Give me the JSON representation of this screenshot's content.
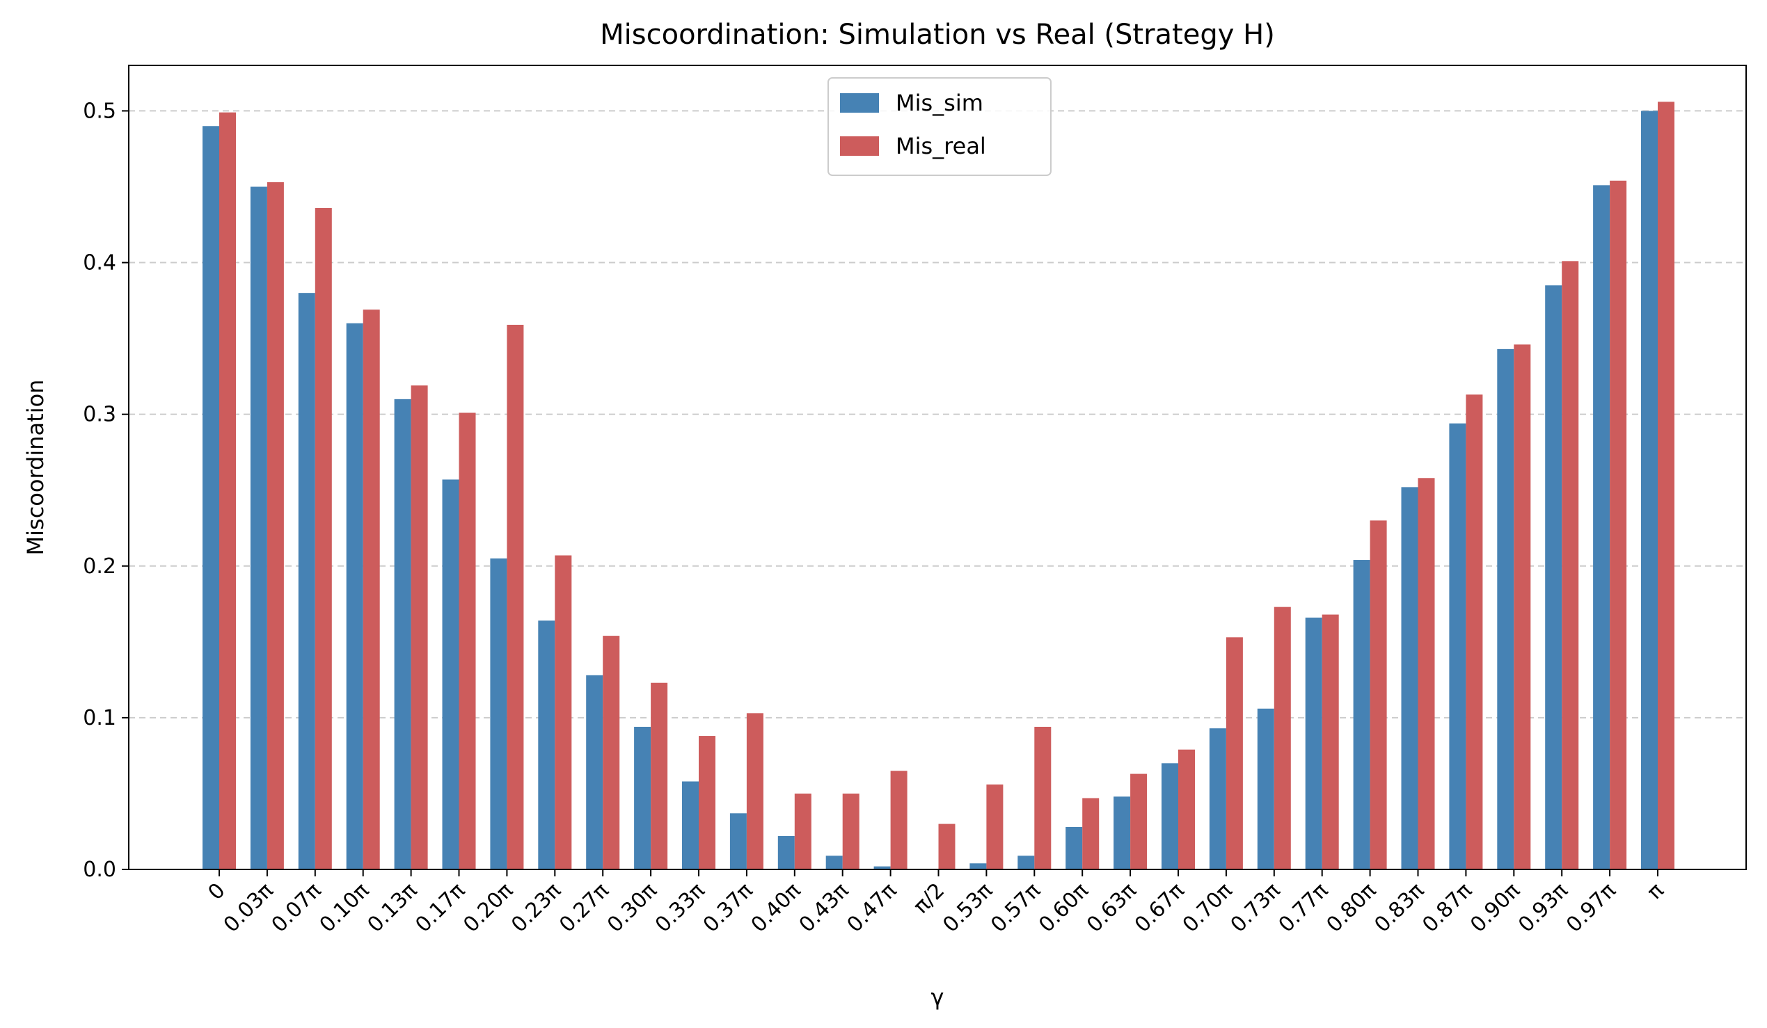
{
  "chart_data": {
    "type": "bar",
    "title": "Miscoordination: Simulation vs Real (Strategy H)",
    "xlabel": "γ",
    "ylabel": "Miscoordination",
    "ylim": [
      0,
      0.53
    ],
    "yticks": [
      0.0,
      0.1,
      0.2,
      0.3,
      0.4,
      0.5
    ],
    "ytick_labels": [
      "0.0",
      "0.1",
      "0.2",
      "0.3",
      "0.4",
      "0.5"
    ],
    "grid": "horizontal dashed",
    "legend_position": "top-center",
    "categories": [
      "0",
      "0.03π",
      "0.07π",
      "0.10π",
      "0.13π",
      "0.17π",
      "0.20π",
      "0.23π",
      "0.27π",
      "0.30π",
      "0.33π",
      "0.37π",
      "0.40π",
      "0.43π",
      "0.47π",
      "π/2",
      "0.53π",
      "0.57π",
      "0.60π",
      "0.63π",
      "0.67π",
      "0.70π",
      "0.73π",
      "0.77π",
      "0.80π",
      "0.83π",
      "0.87π",
      "0.90π",
      "0.93π",
      "0.97π",
      "π"
    ],
    "series": [
      {
        "name": "Mis_sim",
        "color": "#4682b4",
        "values": [
          0.49,
          0.45,
          0.38,
          0.36,
          0.31,
          0.257,
          0.205,
          0.164,
          0.128,
          0.094,
          0.058,
          0.037,
          0.022,
          0.009,
          0.002,
          0.0,
          0.004,
          0.009,
          0.028,
          0.048,
          0.07,
          0.093,
          0.106,
          0.166,
          0.204,
          0.252,
          0.294,
          0.343,
          0.385,
          0.451,
          0.5
        ]
      },
      {
        "name": "Mis_real",
        "color": "#cd5c5c",
        "values": [
          0.499,
          0.453,
          0.436,
          0.369,
          0.319,
          0.301,
          0.359,
          0.207,
          0.154,
          0.123,
          0.088,
          0.103,
          0.05,
          0.05,
          0.065,
          0.03,
          0.056,
          0.094,
          0.047,
          0.063,
          0.079,
          0.153,
          0.173,
          0.168,
          0.23,
          0.258,
          0.313,
          0.346,
          0.401,
          0.454,
          0.506
        ]
      }
    ]
  }
}
